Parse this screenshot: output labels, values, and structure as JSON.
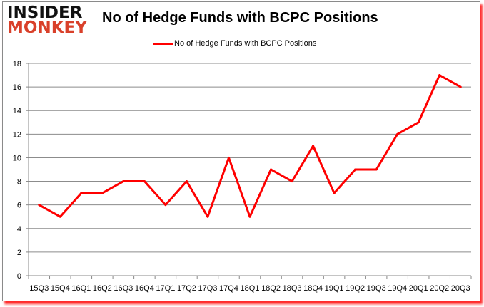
{
  "logo": {
    "line1": "INSIDER",
    "line2": "MONKEY"
  },
  "chart_data": {
    "type": "line",
    "title": "No of Hedge Funds with BCPC Positions",
    "xlabel": "",
    "ylabel": "",
    "categories": [
      "15Q3",
      "15Q4",
      "16Q1",
      "16Q2",
      "16Q3",
      "16Q4",
      "17Q1",
      "17Q2",
      "17Q3",
      "17Q4",
      "18Q1",
      "18Q2",
      "18Q3",
      "18Q4",
      "19Q1",
      "19Q2",
      "19Q3",
      "19Q4",
      "20Q1",
      "20Q2",
      "20Q3"
    ],
    "series": [
      {
        "name": "No of Hedge Funds with BCPC Positions",
        "color": "#ff0000",
        "values": [
          6,
          5,
          7,
          7,
          8,
          8,
          6,
          8,
          5,
          10,
          5,
          9,
          8,
          11,
          7,
          9,
          9,
          12,
          13,
          17,
          16
        ]
      }
    ],
    "ylim": [
      0,
      18
    ],
    "yticks": [
      0,
      2,
      4,
      6,
      8,
      10,
      12,
      14,
      16,
      18
    ],
    "grid": true,
    "legend": "top-center"
  }
}
